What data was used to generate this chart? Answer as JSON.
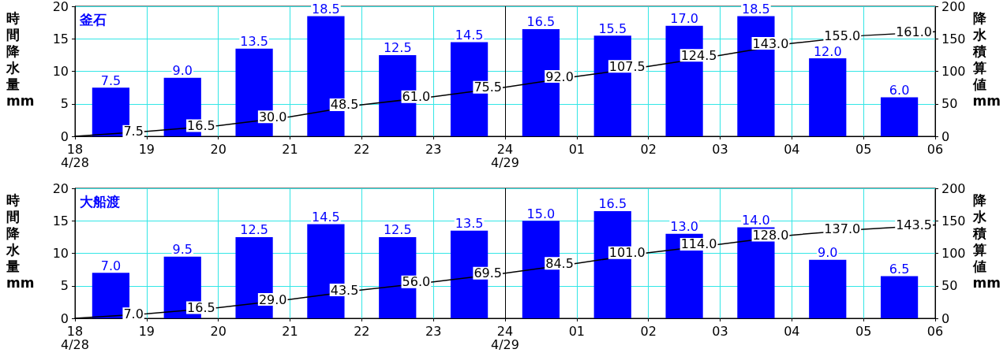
{
  "chart_data": [
    {
      "type": "bar",
      "title": "釜石",
      "ylabel": "時間降水量 mm",
      "y2label": "降水積算値 mm",
      "xlim": [
        "--04-28T18:00",
        "--04-29T06:00"
      ],
      "xticks": [
        {
          "value": "--04-28T18:00",
          "label": "18\n4/28"
        },
        {
          "value": "--04-28T19:00",
          "label": "19"
        },
        {
          "value": "--04-28T20:00",
          "label": "20"
        },
        {
          "value": "--04-28T21:00",
          "label": "21"
        },
        {
          "value": "--04-28T22:00",
          "label": "22"
        },
        {
          "value": "--04-28T23:00",
          "label": "23"
        },
        {
          "value": "--04-29T00:00",
          "label": "24\n4/29"
        },
        {
          "value": "--04-29T01:00",
          "label": "01"
        },
        {
          "value": "--04-29T02:00",
          "label": "02"
        },
        {
          "value": "--04-29T03:00",
          "label": "03"
        },
        {
          "value": "--04-29T04:00",
          "label": "04"
        },
        {
          "value": "--04-29T05:00",
          "label": "05"
        },
        {
          "value": "--04-29T06:00",
          "label": "06"
        }
      ],
      "ylim": [
        0,
        20
      ],
      "yticks": [
        0,
        5,
        10,
        15,
        20
      ],
      "y2lim": [
        0,
        200
      ],
      "y2ticks": [
        0,
        50,
        100,
        150,
        200
      ],
      "grid": true,
      "marker": "none",
      "ref_lines": [
        {
          "axis": "x",
          "value": "--04-29T00:00",
          "color": "#000000"
        }
      ],
      "series": [
        {
          "color": "#0000ff",
          "x": [
            "--04-28T18:30",
            "--04-28T19:30",
            "--04-28T20:30",
            "--04-28T21:30",
            "--04-28T22:30",
            "--04-28T23:30",
            "--04-29T00:30",
            "--04-29T01:30",
            "--04-29T02:30",
            "--04-29T03:30",
            "--04-29T04:30",
            "--04-29T05:30"
          ],
          "values": [
            7.5,
            9.0,
            13.5,
            18.5,
            12.5,
            14.5,
            16.5,
            15.5,
            17.0,
            18.5,
            12.0,
            6.0
          ],
          "value_labels": [
            "7.5",
            "9.0",
            "13.5",
            "18.5",
            "12.5",
            "14.5",
            "16.5",
            "15.5",
            "17.0",
            "18.5",
            "12.0",
            "6.0"
          ]
        },
        {
          "type": "line",
          "axis": "y2",
          "color": "#000000",
          "x": [
            "--04-28T18:00",
            "--04-28T19:00",
            "--04-28T20:00",
            "--04-28T21:00",
            "--04-28T22:00",
            "--04-28T23:00",
            "--04-29T00:00",
            "--04-29T01:00",
            "--04-29T02:00",
            "--04-29T03:00",
            "--04-29T04:00",
            "--04-29T05:00",
            "--04-29T06:00"
          ],
          "values": [
            0,
            7.5,
            16.5,
            30.0,
            48.5,
            61.0,
            75.5,
            92.0,
            107.5,
            124.5,
            143.0,
            155.0,
            161.0
          ],
          "value_labels": [
            null,
            "7.5",
            "16.5",
            "30.0",
            "48.5",
            "61.0",
            "75.5",
            "92.0",
            "107.5",
            "124.5",
            "143.0",
            "155.0",
            "161.0"
          ]
        }
      ]
    },
    {
      "type": "bar",
      "title": "大船渡",
      "ylabel": "時間降水量 mm",
      "y2label": "降水積算値 mm",
      "xlim": [
        "--04-28T18:00",
        "--04-29T06:00"
      ],
      "xticks": [
        {
          "value": "--04-28T18:00",
          "label": "18\n4/28"
        },
        {
          "value": "--04-28T19:00",
          "label": "19"
        },
        {
          "value": "--04-28T20:00",
          "label": "20"
        },
        {
          "value": "--04-28T21:00",
          "label": "21"
        },
        {
          "value": "--04-28T22:00",
          "label": "22"
        },
        {
          "value": "--04-28T23:00",
          "label": "23"
        },
        {
          "value": "--04-29T00:00",
          "label": "24\n4/29"
        },
        {
          "value": "--04-29T01:00",
          "label": "01"
        },
        {
          "value": "--04-29T02:00",
          "label": "02"
        },
        {
          "value": "--04-29T03:00",
          "label": "03"
        },
        {
          "value": "--04-29T04:00",
          "label": "04"
        },
        {
          "value": "--04-29T05:00",
          "label": "05"
        },
        {
          "value": "--04-29T06:00",
          "label": "06"
        }
      ],
      "ylim": [
        0,
        20
      ],
      "yticks": [
        0,
        5,
        10,
        15,
        20
      ],
      "y2lim": [
        0,
        200
      ],
      "y2ticks": [
        0,
        50,
        100,
        150,
        200
      ],
      "grid": true,
      "marker": "none",
      "ref_lines": [
        {
          "axis": "x",
          "value": "--04-29T00:00",
          "color": "#000000"
        }
      ],
      "series": [
        {
          "color": "#0000ff",
          "x": [
            "--04-28T18:30",
            "--04-28T19:30",
            "--04-28T20:30",
            "--04-28T21:30",
            "--04-28T22:30",
            "--04-28T23:30",
            "--04-29T00:30",
            "--04-29T01:30",
            "--04-29T02:30",
            "--04-29T03:30",
            "--04-29T04:30",
            "--04-29T05:30"
          ],
          "values": [
            7.0,
            9.5,
            12.5,
            14.5,
            12.5,
            13.5,
            15.0,
            16.5,
            13.0,
            14.0,
            9.0,
            6.5
          ],
          "value_labels": [
            "7.0",
            "9.5",
            "12.5",
            "14.5",
            "12.5",
            "13.5",
            "15.0",
            "16.5",
            "13.0",
            "14.0",
            "9.0",
            "6.5"
          ]
        },
        {
          "type": "line",
          "axis": "y2",
          "color": "#000000",
          "x": [
            "--04-28T18:00",
            "--04-28T19:00",
            "--04-28T20:00",
            "--04-28T21:00",
            "--04-28T22:00",
            "--04-28T23:00",
            "--04-29T00:00",
            "--04-29T01:00",
            "--04-29T02:00",
            "--04-29T03:00",
            "--04-29T04:00",
            "--04-29T05:00",
            "--04-29T06:00"
          ],
          "values": [
            0,
            7.0,
            16.5,
            29.0,
            43.5,
            56.0,
            69.5,
            84.5,
            101.0,
            114.0,
            128.0,
            137.0,
            143.5
          ],
          "value_labels": [
            null,
            "7.0",
            "16.5",
            "29.0",
            "43.5",
            "56.0",
            "69.5",
            "84.5",
            "101.0",
            "114.0",
            "128.0",
            "137.0",
            "143.5"
          ]
        }
      ]
    }
  ]
}
